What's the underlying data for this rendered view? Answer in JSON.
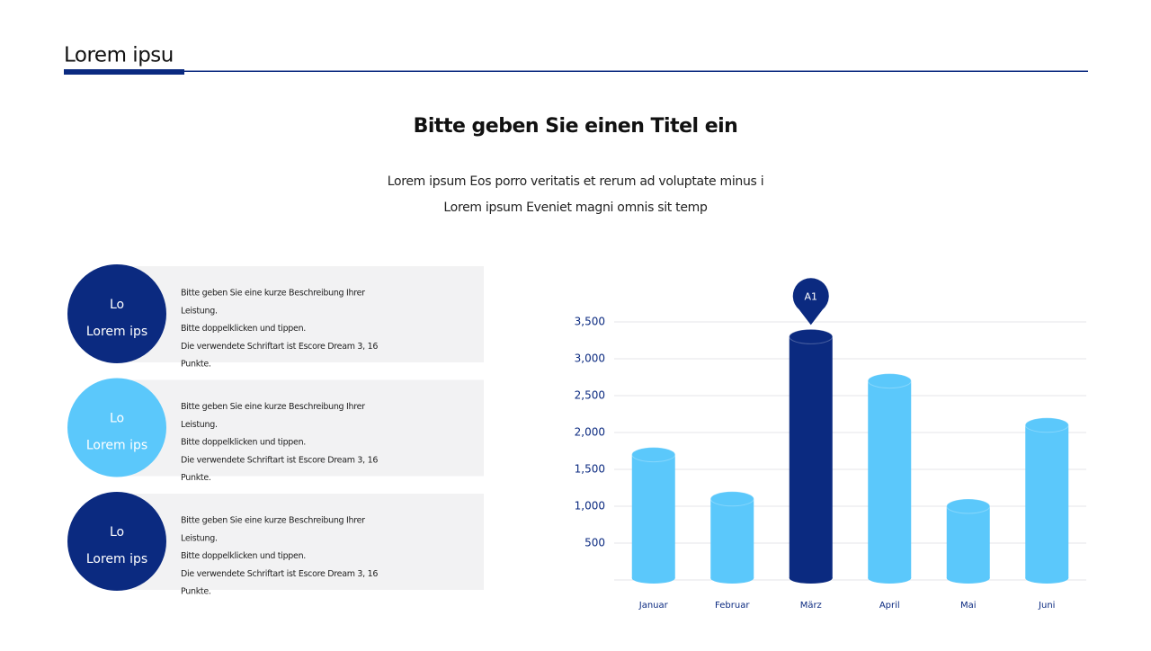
{
  "header": {
    "title": "Lorem ipsu"
  },
  "intro": {
    "title": "Bitte geben Sie einen Titel ein",
    "lines": [
      "Lorem ipsum Eos porro veritatis et rerum ad voluptate minus i",
      "Lorem ipsum Eveniet magni omnis sit temp"
    ]
  },
  "items": [
    {
      "short": "Lo",
      "label": "Lorem ips",
      "color": "#0b2a80",
      "lines": [
        "Bitte geben Sie eine kurze Beschreibung Ihrer",
        "Leistung.",
        "Bitte doppelklicken und tippen.",
        "Die verwendete Schriftart ist Escore Dream 3, 16",
        "Punkte."
      ]
    },
    {
      "short": "Lo",
      "label": "Lorem ips",
      "color": "#5bc8fb",
      "lines": [
        "Bitte geben Sie eine kurze Beschreibung Ihrer",
        "Leistung.",
        "Bitte doppelklicken und tippen.",
        "Die verwendete Schriftart ist Escore Dream 3, 16",
        "Punkte."
      ]
    },
    {
      "short": "Lo",
      "label": "Lorem ips",
      "color": "#0b2a80",
      "lines": [
        "Bitte geben Sie eine kurze Beschreibung Ihrer",
        "Leistung.",
        "Bitte doppelklicken und tippen.",
        "Die verwendete Schriftart ist Escore Dream 3, 16",
        "Punkte."
      ]
    }
  ],
  "chart_data": {
    "type": "bar",
    "categories": [
      "Januar",
      "Februar",
      "März",
      "April",
      "Mai",
      "Juni"
    ],
    "values": [
      1700,
      1100,
      3300,
      2700,
      1000,
      2100
    ],
    "colors": [
      "#5bc8fb",
      "#5bc8fb",
      "#0b2a80",
      "#5bc8fb",
      "#5bc8fb",
      "#5bc8fb"
    ],
    "annotation": {
      "text": "A1",
      "category": "März"
    },
    "ylim": [
      0,
      3500
    ],
    "yticks": [
      500,
      {
        "value": 1000,
        "label": "1,000"
      },
      {
        "value": 1500,
        "label": "1,500"
      },
      {
        "value": 2000,
        "label": "2,000"
      },
      {
        "value": 2500,
        "label": "2,500"
      },
      {
        "value": 3000,
        "label": "3,000"
      },
      {
        "value": 3500,
        "label": "3,500"
      }
    ],
    "grid": true
  }
}
